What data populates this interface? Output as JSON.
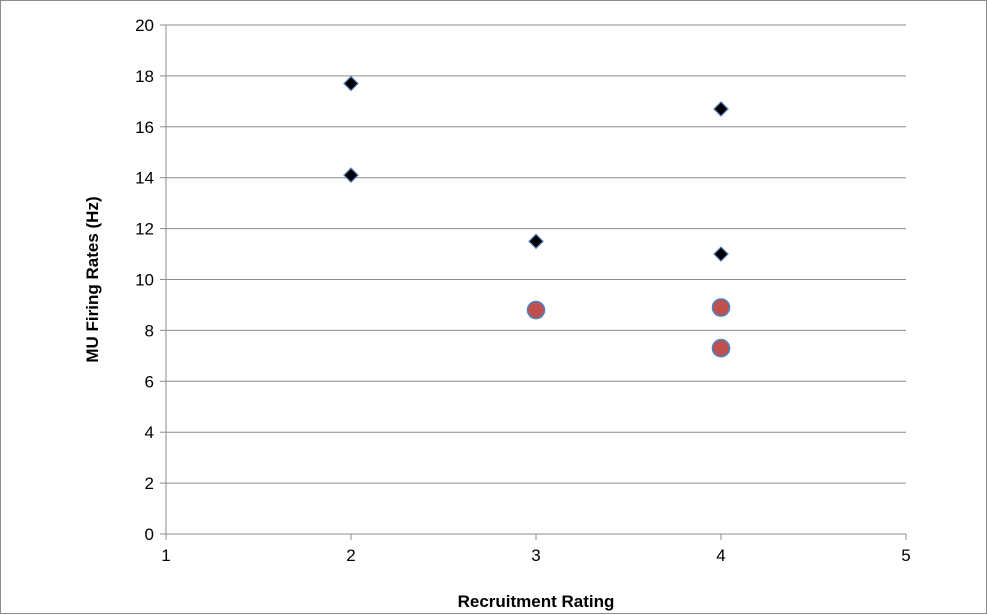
{
  "chart_data": {
    "type": "scatter",
    "title": "",
    "xlabel": "Recruitment Rating",
    "ylabel": "MU Firing Rates (Hz)",
    "xlim": [
      1,
      5
    ],
    "ylim": [
      0,
      20
    ],
    "xticks": [
      1,
      2,
      3,
      4,
      5
    ],
    "yticks": [
      0,
      2,
      4,
      6,
      8,
      10,
      12,
      14,
      16,
      18,
      20
    ],
    "grid": "horizontal",
    "legend": "none",
    "series": [
      {
        "marker": "diamond",
        "color": "#000000",
        "edge_color": "#4f81bd",
        "points": [
          {
            "x": 2,
            "y": 17.7
          },
          {
            "x": 2,
            "y": 14.1
          },
          {
            "x": 3,
            "y": 11.5
          },
          {
            "x": 4,
            "y": 16.7
          },
          {
            "x": 4,
            "y": 11.0
          }
        ]
      },
      {
        "marker": "circle",
        "color": "#c0504d",
        "edge_color": "#4f81bd",
        "points": [
          {
            "x": 3,
            "y": 8.8
          },
          {
            "x": 4,
            "y": 8.9
          },
          {
            "x": 4,
            "y": 7.3
          }
        ]
      }
    ]
  }
}
